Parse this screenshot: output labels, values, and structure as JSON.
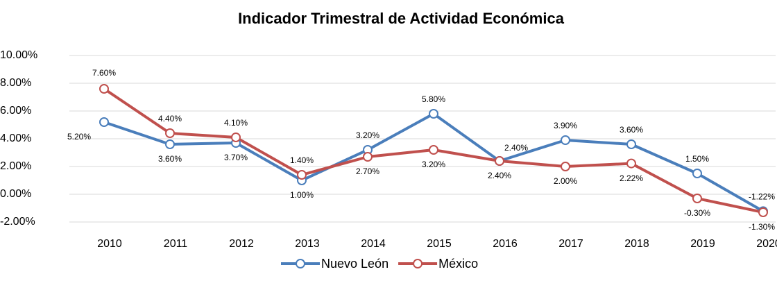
{
  "chart_data": {
    "type": "line",
    "title": "Indicador Trimestral de Actividad Económica",
    "categories": [
      "2010",
      "2011",
      "2012",
      "2013",
      "2014",
      "2015",
      "2016",
      "2017",
      "2018",
      "2019",
      "2020"
    ],
    "series": [
      {
        "name": "Nuevo León",
        "color": "#4a7ebb",
        "values": [
          5.2,
          3.6,
          3.7,
          1.0,
          3.2,
          5.8,
          2.4,
          3.9,
          3.6,
          1.5,
          -1.22
        ],
        "value_labels": [
          "5.20%",
          "3.60%",
          "3.70%",
          "1.00%",
          "3.20%",
          "5.80%",
          "2.40%",
          "3.90%",
          "3.60%",
          "1.50%",
          "-1.22%"
        ]
      },
      {
        "name": "México",
        "color": "#c0504d",
        "values": [
          7.6,
          4.4,
          4.1,
          1.4,
          2.7,
          3.2,
          2.4,
          2.0,
          2.22,
          -0.3,
          -1.3
        ],
        "value_labels": [
          "7.60%",
          "4.40%",
          "4.10%",
          "1.40%",
          "2.70%",
          "3.20%",
          "2.40%",
          "2.00%",
          "2.22%",
          "-0.30%",
          "-1.30%"
        ]
      }
    ],
    "ylim": [
      -2,
      10
    ],
    "yticks": [
      {
        "value": -2,
        "label": "-2.00%"
      },
      {
        "value": 0,
        "label": "0.00%"
      },
      {
        "value": 2,
        "label": "2.00%"
      },
      {
        "value": 4,
        "label": "4.00%"
      },
      {
        "value": 6,
        "label": "6.00%"
      },
      {
        "value": 8,
        "label": "8.00%"
      },
      {
        "value": 10,
        "label": "10.00%"
      }
    ],
    "grid": true,
    "legend": "bottom"
  }
}
